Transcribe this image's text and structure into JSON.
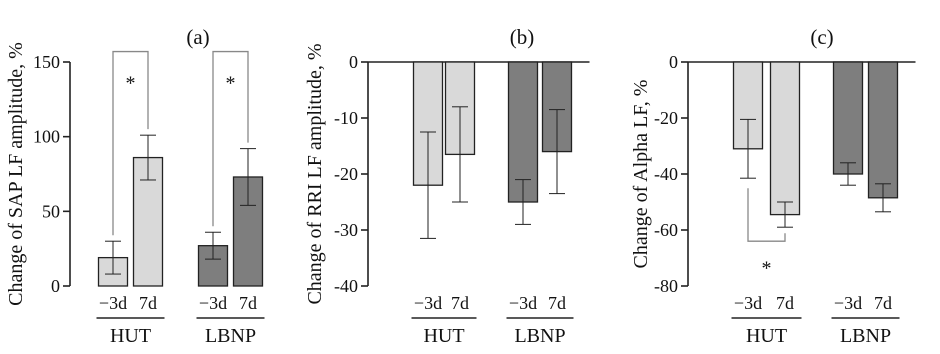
{
  "colors": {
    "light": "#d9d9d9",
    "dark": "#7e7e7e",
    "axis": "#222222",
    "bracket": "#888888"
  },
  "chart_data": [
    {
      "type": "bar",
      "panel_label": "(a)",
      "ylabel": "Change of SAP LF amplitude, %",
      "ylim": [
        0,
        150
      ],
      "yticks": [
        0,
        50,
        100,
        150
      ],
      "categories": [
        "−3d",
        "7d",
        "−3d",
        "7d"
      ],
      "groups": [
        {
          "name": "HUT",
          "indices": [
            0,
            1
          ]
        },
        {
          "name": "LBNP",
          "indices": [
            2,
            3
          ]
        }
      ],
      "values": [
        19,
        86,
        27,
        73
      ],
      "error": [
        11,
        15,
        9,
        19
      ],
      "bar_colors": [
        "light",
        "light",
        "dark",
        "dark"
      ],
      "significance": [
        {
          "pair": [
            0,
            1
          ],
          "label": "*",
          "bracket_y": 157,
          "star_y": 137
        },
        {
          "pair": [
            2,
            3
          ],
          "label": "*",
          "bracket_y": 157,
          "star_y": 137
        }
      ]
    },
    {
      "type": "bar",
      "panel_label": "(b)",
      "ylabel": "Change of RRI LF amplitude, %",
      "ylim": [
        -40,
        0
      ],
      "yticks": [
        0,
        -10,
        -20,
        -30,
        -40
      ],
      "categories": [
        "−3d",
        "7d",
        "−3d",
        "7d"
      ],
      "groups": [
        {
          "name": "HUT",
          "indices": [
            0,
            1
          ]
        },
        {
          "name": "LBNP",
          "indices": [
            2,
            3
          ]
        }
      ],
      "values": [
        -22,
        -16.5,
        -25,
        -16
      ],
      "error": [
        9.5,
        8.5,
        4,
        7.5
      ],
      "bar_colors": [
        "light",
        "light",
        "dark",
        "dark"
      ],
      "significance": []
    },
    {
      "type": "bar",
      "panel_label": "(c)",
      "ylabel": "Change of Alpha LF, %",
      "ylim": [
        -80,
        0
      ],
      "yticks": [
        0,
        -20,
        -40,
        -60,
        -80
      ],
      "categories": [
        "−3d",
        "7d",
        "−3d",
        "7d"
      ],
      "groups": [
        {
          "name": "HUT",
          "indices": [
            0,
            1
          ]
        },
        {
          "name": "LBNP",
          "indices": [
            2,
            3
          ]
        }
      ],
      "values": [
        -31,
        -54.5,
        -40,
        -48.5
      ],
      "error": [
        10.5,
        4.5,
        4,
        5
      ],
      "bar_colors": [
        "light",
        "light",
        "dark",
        "dark"
      ],
      "significance": [
        {
          "pair": [
            0,
            1
          ],
          "label": "*",
          "bracket_y": -64,
          "star_y": -73
        }
      ]
    }
  ]
}
